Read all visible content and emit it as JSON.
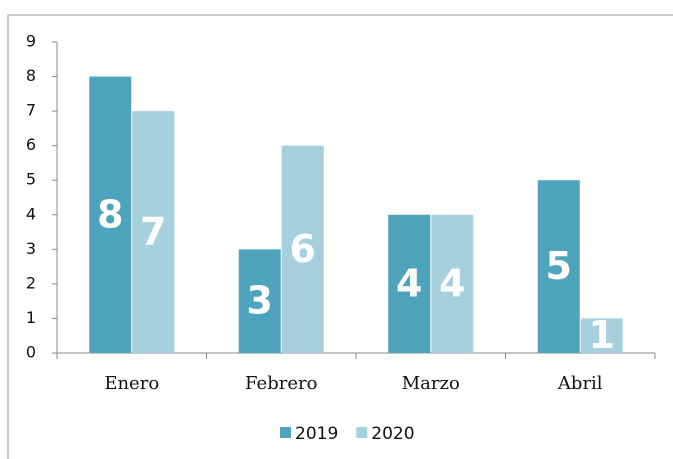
{
  "chart_data": {
    "type": "bar",
    "categories": [
      "Enero",
      "Febrero",
      "Marzo",
      "Abril"
    ],
    "series": [
      {
        "name": "2019",
        "color": "#4ea4bd",
        "values": [
          8,
          3,
          4,
          5
        ]
      },
      {
        "name": "2020",
        "color": "#a7d0df",
        "values": [
          7,
          6,
          4,
          1
        ]
      }
    ],
    "ylim": [
      0,
      9
    ],
    "yticks": [
      0,
      1,
      2,
      3,
      4,
      5,
      6,
      7,
      8,
      9
    ],
    "grid": false,
    "legend": "bottom"
  }
}
